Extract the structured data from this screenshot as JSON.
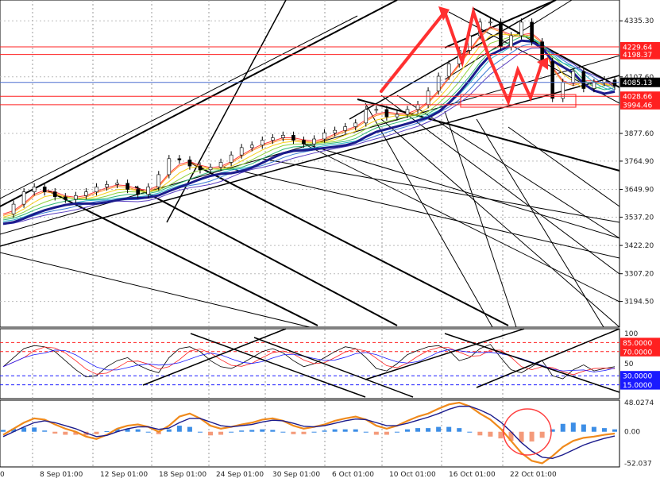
{
  "chart_data": {
    "type": "candlestick",
    "main": {
      "y_ticks": [
        "4335.30",
        "4107.60",
        "3877.60",
        "3764.90",
        "3649.90",
        "3537.20",
        "3422.20",
        "3307.20",
        "3194.50"
      ],
      "tick_values": [
        4335.3,
        4107.6,
        3877.6,
        3764.9,
        3649.9,
        3537.2,
        3422.2,
        3307.2,
        3194.5
      ],
      "ylim": [
        3090,
        4420
      ],
      "price_tags": [
        {
          "label": "4229.64",
          "value": 4229.64,
          "color": "#ff2020"
        },
        {
          "label": "4198.37",
          "value": 4198.37,
          "color": "#ff2020"
        },
        {
          "label": "4085.13",
          "value": 4085.13,
          "color": "#000000"
        },
        {
          "label": "4028.66",
          "value": 4028.66,
          "color": "#ff2020"
        },
        {
          "label": "3994.46",
          "value": 3994.46,
          "color": "#ff2020"
        }
      ],
      "close_series": [
        3550,
        3590,
        3640,
        3660,
        3640,
        3620,
        3610,
        3625,
        3640,
        3660,
        3670,
        3675,
        3650,
        3630,
        3660,
        3710,
        3775,
        3770,
        3745,
        3730,
        3740,
        3760,
        3790,
        3820,
        3830,
        3850,
        3860,
        3870,
        3850,
        3835,
        3855,
        3880,
        3890,
        3905,
        3920,
        3975,
        3975,
        3945,
        3955,
        3975,
        3995,
        4050,
        4110,
        4160,
        4215,
        4275,
        4330,
        4330,
        4230,
        4275,
        4330,
        4250,
        4170,
        4020,
        4085,
        4130,
        4060,
        4085,
        4095,
        4070
      ]
    },
    "rsi": {
      "levels": [
        {
          "label": "85.0000",
          "value": 85,
          "color": "#ff2020"
        },
        {
          "label": "70.0000",
          "value": 70,
          "color": "#ff2020"
        },
        {
          "label": "30.0000",
          "value": 30,
          "color": "#1a1aff"
        },
        {
          "label": "15.0000",
          "value": 15,
          "color": "#1a1aff"
        }
      ],
      "ticks": [
        "100",
        "50"
      ],
      "tick_values": [
        100,
        50
      ],
      "values": [
        45,
        60,
        75,
        80,
        78,
        70,
        55,
        40,
        28,
        30,
        45,
        55,
        60,
        48,
        40,
        35,
        60,
        75,
        78,
        70,
        55,
        45,
        42,
        50,
        60,
        70,
        75,
        68,
        55,
        45,
        50,
        60,
        70,
        78,
        75,
        60,
        42,
        38,
        50,
        65,
        72,
        78,
        80,
        72,
        55,
        60,
        75,
        82,
        60,
        40,
        35,
        45,
        55,
        30,
        25,
        40,
        48,
        38,
        42,
        45
      ]
    },
    "macd": {
      "ticks": [
        "48.0274",
        "0.00",
        "-52.037"
      ],
      "tick_values": [
        48.0274,
        0,
        -52.037
      ],
      "values": [
        -5,
        5,
        15,
        22,
        20,
        12,
        5,
        0,
        -8,
        -12,
        -5,
        5,
        10,
        12,
        8,
        0,
        10,
        25,
        30,
        22,
        10,
        5,
        8,
        12,
        15,
        20,
        22,
        18,
        10,
        5,
        8,
        12,
        18,
        22,
        25,
        20,
        10,
        5,
        10,
        18,
        25,
        30,
        38,
        45,
        48,
        42,
        30,
        20,
        5,
        -15,
        -35,
        -48,
        -52,
        -40,
        -25,
        -15,
        -10,
        -8,
        -5,
        -3
      ],
      "signal": [
        -8,
        0,
        8,
        15,
        18,
        15,
        10,
        5,
        -2,
        -8,
        -6,
        0,
        5,
        8,
        8,
        4,
        6,
        15,
        22,
        22,
        16,
        10,
        8,
        10,
        12,
        16,
        19,
        18,
        14,
        9,
        8,
        10,
        14,
        18,
        21,
        20,
        15,
        10,
        10,
        14,
        19,
        24,
        30,
        37,
        42,
        42,
        36,
        28,
        16,
        0,
        -18,
        -32,
        -42,
        -44,
        -38,
        -30,
        -22,
        -16,
        -11,
        -7
      ],
      "ylim": [
        -58,
        52
      ]
    },
    "x_labels": [
      "0",
      "8 Sep 01:00",
      "12 Sep 01:00",
      "18 Sep 01:00",
      "24 Sep 01:00",
      "30 Sep 01:00",
      "6 Oct 01:00",
      "10 Oct 01:00",
      "16 Oct 01:00",
      "22 Oct 01:00"
    ]
  }
}
